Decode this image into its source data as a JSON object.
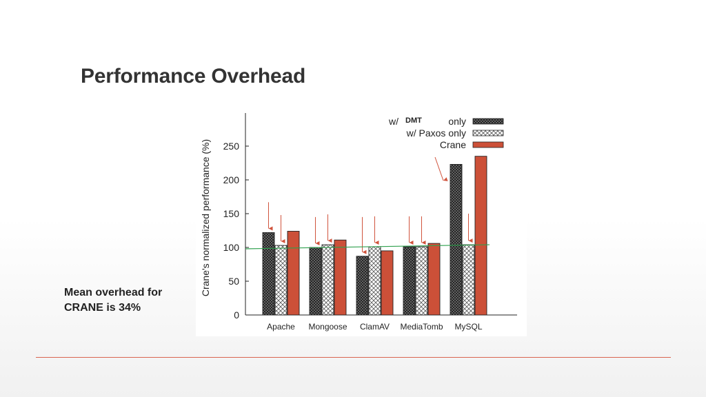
{
  "slide": {
    "title": "Performance Overhead",
    "note_line1": "Mean overhead for",
    "note_line2": "CRANE is 34%"
  },
  "chart_data": {
    "type": "bar",
    "title": "",
    "xlabel": "",
    "ylabel": "Crane's normalized performance (%)",
    "ylim": [
      0,
      300
    ],
    "yticks": [
      0,
      50,
      100,
      150,
      200,
      250
    ],
    "categories": [
      "Apache",
      "Mongoose",
      "ClamAV",
      "MediaTomb",
      "MySQL"
    ],
    "series": [
      {
        "name_prefix": "w/",
        "name_highlight": "DMT",
        "name_suffix": "only",
        "fill": "crosshatch-dark",
        "values": [
          122,
          100,
          87,
          101,
          223
        ]
      },
      {
        "name": "w/ Paxos only",
        "fill": "crosshatch-light",
        "values": [
          103,
          104,
          101,
          101,
          104
        ]
      },
      {
        "name": "Crane",
        "fill": "#cc5038",
        "values": [
          124,
          111,
          95,
          106,
          235
        ]
      }
    ],
    "reference_line": {
      "value": 100,
      "color": "#2ea04d"
    },
    "legend_position": "top-right",
    "arrow_color": "#d0533c",
    "grid": false
  }
}
